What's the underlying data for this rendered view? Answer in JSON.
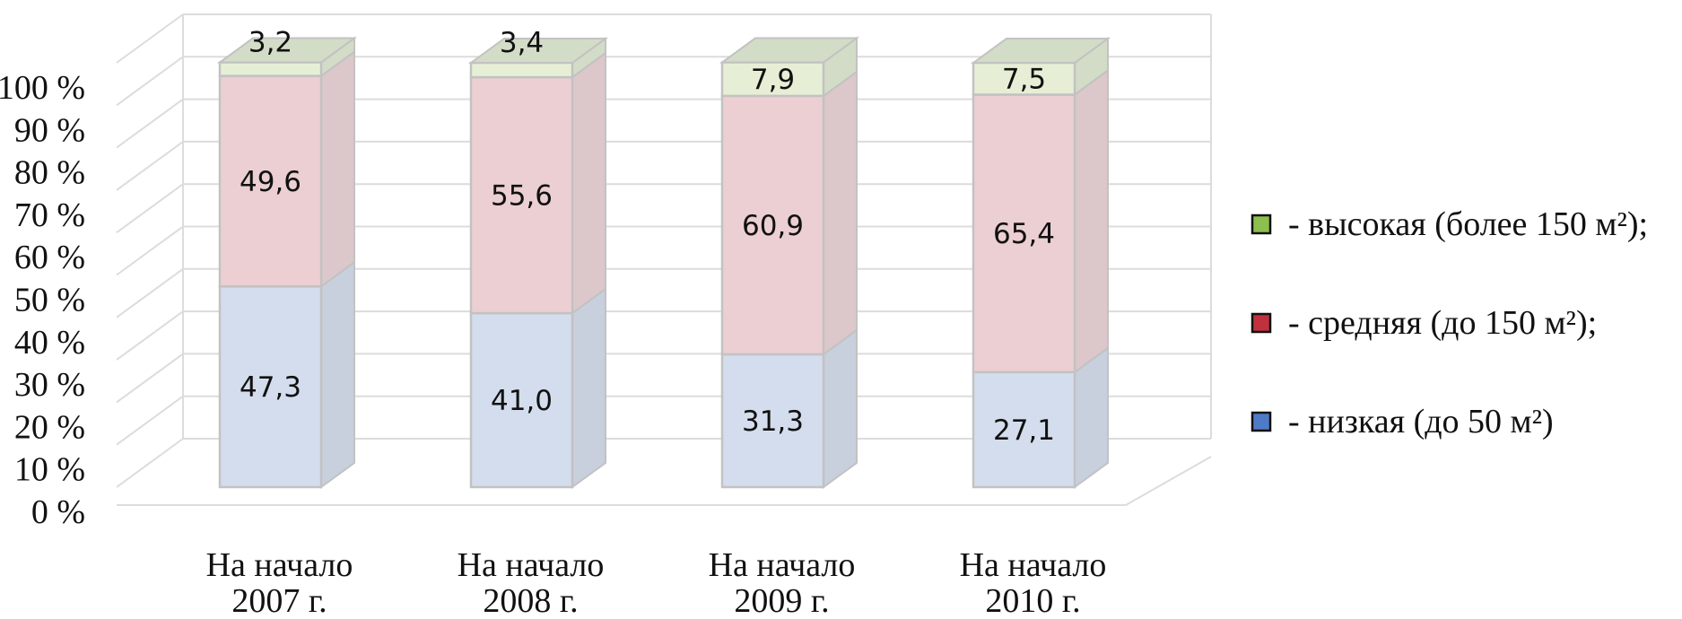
{
  "chart_data": {
    "type": "bar",
    "stacked": true,
    "three_d": true,
    "categories": [
      [
        "На начало",
        "2007 г."
      ],
      [
        "На начало",
        "2008 г."
      ],
      [
        "На начало",
        "2009 г."
      ],
      [
        "На начало",
        "2010 г."
      ]
    ],
    "series": [
      {
        "name": "- низкая (до 50 м²)",
        "values": [
          47.3,
          41.0,
          31.3,
          27.1
        ],
        "labels": [
          "47,3",
          "41,0",
          "31,3",
          "27,1"
        ],
        "color": "#d4dded",
        "side_color": "#c8cfdd",
        "legend_color": "#4f7ac7"
      },
      {
        "name": "- средняя (до 150 м²);",
        "values": [
          49.6,
          55.6,
          60.9,
          65.4
        ],
        "labels": [
          "49,6",
          "55,6",
          "60,9",
          "65,4"
        ],
        "color": "#eccfd3",
        "side_color": "#dcc7ca",
        "legend_color": "#c0313d"
      },
      {
        "name": "- высокая (более 150 м²);",
        "values": [
          3.2,
          3.4,
          7.9,
          7.5
        ],
        "labels": [
          "3,2",
          "3,4",
          "7,9",
          "7,5"
        ],
        "color": "#e6efd5",
        "side_color": "#d3dcc6",
        "legend_color": "#8cbf4f"
      }
    ],
    "y_ticks": [
      "0 %",
      "10 %",
      "20 %",
      "30 %",
      "40 %",
      "50 %",
      "60 %",
      "70 %",
      "80 %",
      "90 %",
      "100 %"
    ],
    "ylim": [
      0,
      100
    ],
    "grid": true,
    "legend_position": "right"
  }
}
